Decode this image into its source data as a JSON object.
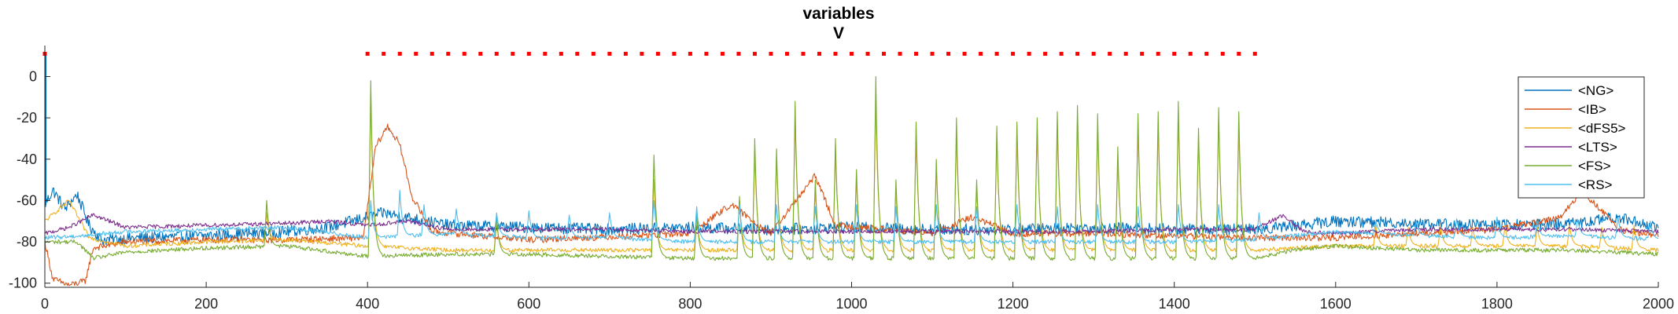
{
  "chart_data": {
    "type": "line",
    "title": [
      "variables",
      "V"
    ],
    "xlabel": "",
    "ylabel": "",
    "xlim": [
      0,
      2000
    ],
    "ylim": [
      -102,
      15
    ],
    "xticks": [
      0,
      200,
      400,
      600,
      800,
      1000,
      1200,
      1400,
      1600,
      1800,
      2000
    ],
    "yticks": [
      0,
      -20,
      -40,
      -60,
      -80,
      -100
    ],
    "grid": false,
    "legend_position": "top-right",
    "stimulus_marker": {
      "color": "#FF0000",
      "y": 11,
      "x_start": 400,
      "x_end": 1505,
      "spacing": 20
    },
    "series": [
      {
        "name": "<NG>",
        "color": "#0072BD",
        "points": [
          [
            0,
            -62
          ],
          [
            10,
            -55
          ],
          [
            25,
            -64
          ],
          [
            40,
            -57
          ],
          [
            55,
            -72
          ],
          [
            70,
            -79
          ],
          [
            120,
            -78
          ],
          [
            200,
            -77
          ],
          [
            300,
            -75
          ],
          [
            350,
            -73
          ],
          [
            420,
            -66
          ],
          [
            500,
            -72
          ],
          [
            600,
            -73
          ],
          [
            700,
            -74
          ],
          [
            800,
            -73
          ],
          [
            900,
            -74
          ],
          [
            1000,
            -73
          ],
          [
            1100,
            -74
          ],
          [
            1200,
            -74
          ],
          [
            1300,
            -73
          ],
          [
            1400,
            -74
          ],
          [
            1500,
            -74
          ],
          [
            1600,
            -70
          ],
          [
            1700,
            -71
          ],
          [
            1800,
            -72
          ],
          [
            1900,
            -71
          ],
          [
            1950,
            -68
          ],
          [
            2000,
            -73
          ]
        ]
      },
      {
        "name": "<IB>",
        "color": "#D95319",
        "points": [
          [
            0,
            -80
          ],
          [
            10,
            -98
          ],
          [
            30,
            -101
          ],
          [
            50,
            -99
          ],
          [
            60,
            -83
          ],
          [
            100,
            -80
          ],
          [
            200,
            -79
          ],
          [
            300,
            -79
          ],
          [
            395,
            -78
          ],
          [
            410,
            -34
          ],
          [
            425,
            -24
          ],
          [
            440,
            -33
          ],
          [
            455,
            -58
          ],
          [
            480,
            -75
          ],
          [
            600,
            -79
          ],
          [
            800,
            -76
          ],
          [
            850,
            -62
          ],
          [
            900,
            -76
          ],
          [
            955,
            -48
          ],
          [
            980,
            -72
          ],
          [
            1100,
            -76
          ],
          [
            1150,
            -68
          ],
          [
            1200,
            -76
          ],
          [
            1300,
            -76
          ],
          [
            1400,
            -77
          ],
          [
            1500,
            -78
          ],
          [
            1600,
            -78
          ],
          [
            1800,
            -74
          ],
          [
            1880,
            -68
          ],
          [
            1905,
            -55
          ],
          [
            1925,
            -63
          ],
          [
            1950,
            -74
          ],
          [
            2000,
            -77
          ]
        ]
      },
      {
        "name": "<dFS5>",
        "color": "#EDB120",
        "points": [
          [
            0,
            -70
          ],
          [
            30,
            -60
          ],
          [
            55,
            -78
          ],
          [
            100,
            -82
          ],
          [
            200,
            -80
          ],
          [
            300,
            -79
          ],
          [
            400,
            -82
          ],
          [
            500,
            -84
          ],
          [
            600,
            -84
          ],
          [
            700,
            -84
          ],
          [
            800,
            -84
          ],
          [
            900,
            -84
          ],
          [
            1000,
            -84
          ],
          [
            1100,
            -84
          ],
          [
            1200,
            -84
          ],
          [
            1300,
            -84
          ],
          [
            1400,
            -84
          ],
          [
            1500,
            -84
          ],
          [
            1600,
            -82
          ],
          [
            1700,
            -82
          ],
          [
            1800,
            -82
          ],
          [
            1900,
            -82
          ],
          [
            2000,
            -84
          ]
        ]
      },
      {
        "name": "<LTS>",
        "color": "#7E2F8E",
        "points": [
          [
            0,
            -76
          ],
          [
            30,
            -73
          ],
          [
            60,
            -67
          ],
          [
            80,
            -70
          ],
          [
            100,
            -73
          ],
          [
            200,
            -72
          ],
          [
            300,
            -71
          ],
          [
            350,
            -70
          ],
          [
            400,
            -72
          ],
          [
            450,
            -70
          ],
          [
            500,
            -74
          ],
          [
            600,
            -74
          ],
          [
            700,
            -74
          ],
          [
            800,
            -75
          ],
          [
            900,
            -75
          ],
          [
            1000,
            -75
          ],
          [
            1100,
            -75
          ],
          [
            1200,
            -75
          ],
          [
            1300,
            -75
          ],
          [
            1400,
            -74
          ],
          [
            1500,
            -74
          ],
          [
            1535,
            -67
          ],
          [
            1560,
            -75
          ],
          [
            1600,
            -76
          ],
          [
            1700,
            -74
          ],
          [
            1800,
            -74
          ],
          [
            1900,
            -74
          ],
          [
            2000,
            -75
          ]
        ]
      },
      {
        "name": "<FS>",
        "color": "#77AC30",
        "points": [
          [
            0,
            -80
          ],
          [
            40,
            -80
          ],
          [
            60,
            -88
          ],
          [
            100,
            -85
          ],
          [
            200,
            -83
          ],
          [
            300,
            -82
          ],
          [
            400,
            -87
          ],
          [
            500,
            -86
          ],
          [
            600,
            -86
          ],
          [
            700,
            -87
          ],
          [
            800,
            -88
          ],
          [
            900,
            -88
          ],
          [
            1000,
            -88
          ],
          [
            1100,
            -88
          ],
          [
            1200,
            -88
          ],
          [
            1300,
            -88
          ],
          [
            1400,
            -88
          ],
          [
            1500,
            -88
          ],
          [
            1550,
            -84
          ],
          [
            1600,
            -82
          ],
          [
            1700,
            -84
          ],
          [
            1800,
            -84
          ],
          [
            1900,
            -84
          ],
          [
            2000,
            -86
          ]
        ]
      },
      {
        "name": "<RS>",
        "color": "#4DBEEE",
        "points": [
          [
            0,
            -78
          ],
          [
            50,
            -77
          ],
          [
            100,
            -75
          ],
          [
            200,
            -74
          ],
          [
            300,
            -73
          ],
          [
            400,
            -78
          ],
          [
            500,
            -76
          ],
          [
            600,
            -78
          ],
          [
            700,
            -78
          ],
          [
            800,
            -80
          ],
          [
            900,
            -80
          ],
          [
            1000,
            -80
          ],
          [
            1100,
            -80
          ],
          [
            1200,
            -80
          ],
          [
            1300,
            -80
          ],
          [
            1400,
            -80
          ],
          [
            1500,
            -79
          ],
          [
            1600,
            -75
          ],
          [
            1700,
            -77
          ],
          [
            1800,
            -78
          ],
          [
            1900,
            -77
          ],
          [
            2000,
            -79
          ]
        ]
      }
    ],
    "spike_events": [
      {
        "series": "<FS>",
        "x": [
          275,
          404,
          560,
          755,
          808,
          861,
          880,
          907,
          930,
          955,
          980,
          1006,
          1030,
          1055,
          1080,
          1105,
          1130,
          1155,
          1180,
          1205,
          1230,
          1255,
          1280,
          1305,
          1330,
          1355,
          1380,
          1405,
          1430,
          1455,
          1480
        ],
        "peaks": [
          -60,
          -2,
          -68,
          -38,
          -66,
          -58,
          -30,
          -35,
          -12,
          -50,
          -30,
          -45,
          0,
          -50,
          -22,
          -40,
          -20,
          -50,
          -24,
          -22,
          -20,
          -17,
          -14,
          -18,
          -34,
          -18,
          -17,
          -12,
          -25,
          -15,
          -17
        ]
      },
      {
        "series": "<dFS5>",
        "x": [
          275,
          404,
          560,
          755,
          808,
          861,
          880,
          907,
          930,
          955,
          980,
          1006,
          1030,
          1055,
          1080,
          1105,
          1130,
          1155,
          1180,
          1205,
          1230,
          1255,
          1280,
          1305,
          1330,
          1355,
          1380,
          1405,
          1430,
          1455,
          1480
        ],
        "peaks": [
          -66,
          -10,
          -70,
          -50,
          -68,
          -60,
          -38,
          -40,
          -20,
          -55,
          -36,
          -50,
          -12,
          -55,
          -30,
          -45,
          -28,
          -55,
          -30,
          -30,
          -26,
          -25,
          -22,
          -25,
          -40,
          -25,
          -24,
          -20,
          -30,
          -20,
          -25
        ]
      },
      {
        "series": "<RS>",
        "x": [
          404,
          440,
          470,
          510,
          560,
          600,
          650,
          700,
          755,
          808,
          861,
          907,
          955,
          1006,
          1055,
          1105,
          1155,
          1205,
          1255,
          1305,
          1355,
          1405,
          1455,
          1505,
          1650,
          1700,
          1750,
          1800,
          1850,
          1900,
          1950,
          1990
        ],
        "peaks": [
          -60,
          -55,
          -62,
          -64,
          -66,
          -65,
          -67,
          -66,
          -60,
          -63,
          -62,
          -62,
          -63,
          -62,
          -63,
          -62,
          -63,
          -62,
          -63,
          -62,
          -63,
          -62,
          -62,
          -66,
          -70,
          -70,
          -69,
          -68,
          -70,
          -69,
          -68,
          -70
        ]
      },
      {
        "series": "<dFS5>",
        "x": [
          1650,
          1690,
          1730,
          1770,
          1810,
          1850,
          1890,
          1930,
          1970
        ],
        "peaks": [
          -72,
          -73,
          -72,
          -73,
          -72,
          -73,
          -72,
          -73,
          -72
        ]
      }
    ]
  }
}
